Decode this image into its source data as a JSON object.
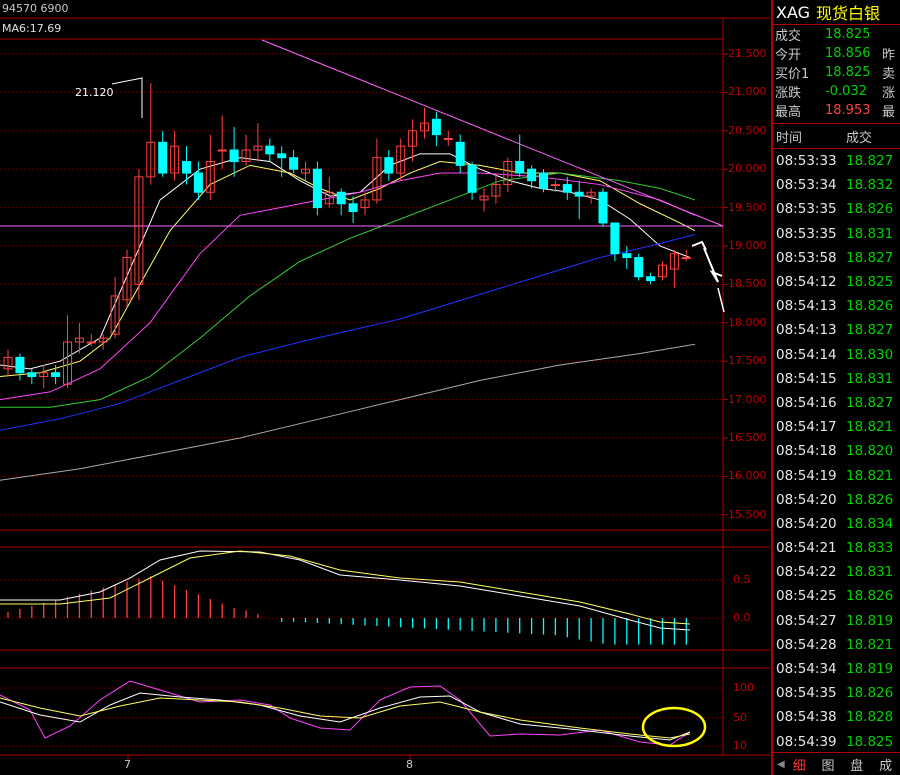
{
  "chart": {
    "top_info": "94570 6900",
    "ma_label": "MA6:17.69",
    "peak_label": "21.120",
    "price_axis": [
      "21.500",
      "21.000",
      "20.500",
      "20.000",
      "19.500",
      "19.000",
      "18.500",
      "18.000",
      "17.500",
      "17.000",
      "16.500",
      "16.000",
      "15.500"
    ],
    "macd_axis": [
      "0.5",
      "0.0"
    ],
    "kdj_axis": [
      "100",
      "50",
      "10"
    ],
    "date_labels": [
      "7",
      "8"
    ],
    "colors": {
      "up": "#ff4040",
      "down": "#00ffff",
      "ma_white": "#ffffff",
      "ma_yellow": "#ffff66",
      "ma_magenta": "#ff44ff",
      "ma_green": "#33cc33",
      "ma_blue": "#2233ff",
      "ma_gray": "#aaaaaa",
      "trendline": "#ff66ff",
      "grid": "#800000"
    },
    "candles": [
      {
        "o": 17.4,
        "c": 17.55,
        "h": 17.65,
        "l": 17.3
      },
      {
        "o": 17.55,
        "c": 17.35,
        "h": 17.6,
        "l": 17.25
      },
      {
        "o": 17.35,
        "c": 17.3,
        "h": 17.4,
        "l": 17.2
      },
      {
        "o": 17.3,
        "c": 17.35,
        "h": 17.45,
        "l": 17.15
      },
      {
        "o": 17.35,
        "c": 17.3,
        "h": 17.45,
        "l": 17.2
      },
      {
        "o": 17.2,
        "c": 17.75,
        "h": 18.1,
        "l": 17.15
      },
      {
        "o": 17.75,
        "c": 17.8,
        "h": 18.0,
        "l": 17.6
      },
      {
        "o": 17.75,
        "c": 17.75,
        "h": 17.85,
        "l": 17.7
      },
      {
        "o": 17.75,
        "c": 17.8,
        "h": 17.85,
        "l": 17.65
      },
      {
        "o": 17.85,
        "c": 18.35,
        "h": 18.6,
        "l": 17.8
      },
      {
        "o": 18.3,
        "c": 18.85,
        "h": 18.95,
        "l": 18.2
      },
      {
        "o": 18.5,
        "c": 19.9,
        "h": 20.0,
        "l": 18.3
      },
      {
        "o": 19.9,
        "c": 20.35,
        "h": 21.12,
        "l": 19.8
      },
      {
        "o": 20.35,
        "c": 19.95,
        "h": 20.5,
        "l": 19.9
      },
      {
        "o": 19.95,
        "c": 20.3,
        "h": 20.5,
        "l": 19.85
      },
      {
        "o": 20.1,
        "c": 19.95,
        "h": 20.3,
        "l": 19.8
      },
      {
        "o": 19.95,
        "c": 19.7,
        "h": 20.1,
        "l": 19.6
      },
      {
        "o": 19.7,
        "c": 20.1,
        "h": 20.45,
        "l": 19.6
      },
      {
        "o": 20.25,
        "c": 20.25,
        "h": 20.7,
        "l": 20.0
      },
      {
        "o": 20.25,
        "c": 20.1,
        "h": 20.55,
        "l": 19.9
      },
      {
        "o": 20.1,
        "c": 20.25,
        "h": 20.45,
        "l": 20.05
      },
      {
        "o": 20.25,
        "c": 20.3,
        "h": 20.6,
        "l": 20.1
      },
      {
        "o": 20.3,
        "c": 20.2,
        "h": 20.4,
        "l": 20.1
      },
      {
        "o": 20.2,
        "c": 20.15,
        "h": 20.3,
        "l": 19.9
      },
      {
        "o": 20.15,
        "c": 20.0,
        "h": 20.25,
        "l": 19.95
      },
      {
        "o": 19.95,
        "c": 20.0,
        "h": 20.1,
        "l": 19.85
      },
      {
        "o": 20.0,
        "c": 19.5,
        "h": 20.1,
        "l": 19.4
      },
      {
        "o": 19.55,
        "c": 19.7,
        "h": 19.9,
        "l": 19.5
      },
      {
        "o": 19.7,
        "c": 19.55,
        "h": 19.75,
        "l": 19.4
      },
      {
        "o": 19.55,
        "c": 19.45,
        "h": 19.65,
        "l": 19.3
      },
      {
        "o": 19.5,
        "c": 19.6,
        "h": 19.7,
        "l": 19.4
      },
      {
        "o": 19.6,
        "c": 20.15,
        "h": 20.4,
        "l": 19.55
      },
      {
        "o": 20.15,
        "c": 19.95,
        "h": 20.25,
        "l": 19.85
      },
      {
        "o": 19.95,
        "c": 20.3,
        "h": 20.4,
        "l": 19.85
      },
      {
        "o": 20.3,
        "c": 20.5,
        "h": 20.65,
        "l": 20.1
      },
      {
        "o": 20.5,
        "c": 20.6,
        "h": 20.8,
        "l": 20.4
      },
      {
        "o": 20.65,
        "c": 20.45,
        "h": 20.75,
        "l": 20.3
      },
      {
        "o": 20.4,
        "c": 20.4,
        "h": 20.5,
        "l": 20.3
      },
      {
        "o": 20.35,
        "c": 20.05,
        "h": 20.45,
        "l": 19.95
      },
      {
        "o": 20.05,
        "c": 19.7,
        "h": 20.1,
        "l": 19.6
      },
      {
        "o": 19.6,
        "c": 19.65,
        "h": 19.75,
        "l": 19.45
      },
      {
        "o": 19.65,
        "c": 19.8,
        "h": 19.95,
        "l": 19.55
      },
      {
        "o": 19.8,
        "c": 20.1,
        "h": 20.15,
        "l": 19.7
      },
      {
        "o": 20.1,
        "c": 19.95,
        "h": 20.45,
        "l": 19.9
      },
      {
        "o": 20.0,
        "c": 19.85,
        "h": 20.05,
        "l": 19.75
      },
      {
        "o": 19.95,
        "c": 19.75,
        "h": 20.0,
        "l": 19.7
      },
      {
        "o": 19.8,
        "c": 19.8,
        "h": 19.85,
        "l": 19.7
      },
      {
        "o": 19.8,
        "c": 19.7,
        "h": 19.9,
        "l": 19.6
      },
      {
        "o": 19.7,
        "c": 19.65,
        "h": 19.85,
        "l": 19.35
      },
      {
        "o": 19.65,
        "c": 19.7,
        "h": 19.75,
        "l": 19.55
      },
      {
        "o": 19.7,
        "c": 19.3,
        "h": 19.75,
        "l": 19.25
      },
      {
        "o": 19.3,
        "c": 18.9,
        "h": 19.3,
        "l": 18.8
      },
      {
        "o": 18.9,
        "c": 18.85,
        "h": 19.0,
        "l": 18.7
      },
      {
        "o": 18.85,
        "c": 18.6,
        "h": 18.9,
        "l": 18.55
      },
      {
        "o": 18.6,
        "c": 18.55,
        "h": 18.65,
        "l": 18.5
      },
      {
        "o": 18.6,
        "c": 18.75,
        "h": 18.8,
        "l": 18.55
      },
      {
        "o": 18.7,
        "c": 18.9,
        "h": 18.95,
        "l": 18.45
      },
      {
        "o": 18.85,
        "c": 18.85,
        "h": 18.95,
        "l": 18.8
      }
    ]
  },
  "side": {
    "symbol": "XAG",
    "name": "现货白银",
    "quotes": [
      {
        "label": "成交",
        "value": "18.825",
        "extra": "",
        "color": "#00d000"
      },
      {
        "label": "今开",
        "value": "18.856",
        "extra": "昨",
        "color": "#00d000"
      },
      {
        "label": "买价1",
        "value": "18.825",
        "extra": "卖",
        "color": "#00d000"
      },
      {
        "label": "涨跌",
        "value": "-0.032",
        "extra": "涨",
        "color": "#00d000"
      },
      {
        "label": "最高",
        "value": "18.953",
        "extra": "最",
        "color": "#ff4040"
      }
    ],
    "table_headers": [
      "时间",
      "成交"
    ],
    "ticks": [
      {
        "time": "08:53:33",
        "price": "18.827"
      },
      {
        "time": "08:53:34",
        "price": "18.832"
      },
      {
        "time": "08:53:35",
        "price": "18.826"
      },
      {
        "time": "08:53:35",
        "price": "18.831"
      },
      {
        "time": "08:53:58",
        "price": "18.827"
      },
      {
        "time": "08:54:12",
        "price": "18.825"
      },
      {
        "time": "08:54:13",
        "price": "18.826"
      },
      {
        "time": "08:54:13",
        "price": "18.827"
      },
      {
        "time": "08:54:14",
        "price": "18.830"
      },
      {
        "time": "08:54:15",
        "price": "18.831"
      },
      {
        "time": "08:54:16",
        "price": "18.827"
      },
      {
        "time": "08:54:17",
        "price": "18.821"
      },
      {
        "time": "08:54:18",
        "price": "18.820"
      },
      {
        "time": "08:54:19",
        "price": "18.821"
      },
      {
        "time": "08:54:20",
        "price": "18.826"
      },
      {
        "time": "08:54:20",
        "price": "18.834"
      },
      {
        "time": "08:54:21",
        "price": "18.833"
      },
      {
        "time": "08:54:22",
        "price": "18.831"
      },
      {
        "time": "08:54:25",
        "price": "18.826"
      },
      {
        "time": "08:54:27",
        "price": "18.819"
      },
      {
        "time": "08:54:28",
        "price": "18.821"
      },
      {
        "time": "08:54:34",
        "price": "18.819"
      },
      {
        "time": "08:54:35",
        "price": "18.826"
      },
      {
        "time": "08:54:38",
        "price": "18.828"
      },
      {
        "time": "08:54:39",
        "price": "18.825"
      }
    ],
    "tabs": [
      "细",
      "图",
      "盘",
      "成"
    ],
    "active_tab": "细"
  }
}
